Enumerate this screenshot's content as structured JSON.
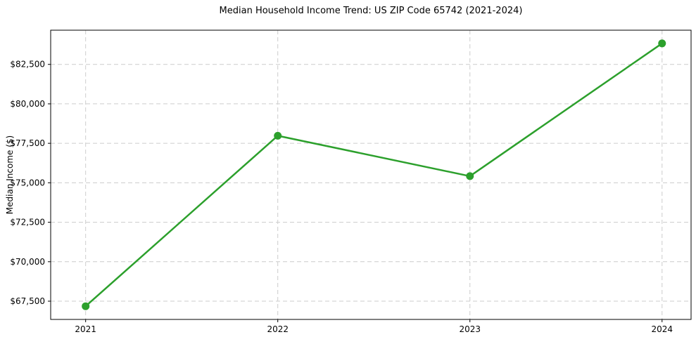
{
  "chart_data": {
    "type": "line",
    "title": "Median Household Income Trend: US ZIP Code 65742 (2021-2024)",
    "xlabel": "",
    "ylabel": "Median Income ($)",
    "x": [
      2021,
      2022,
      2023,
      2024
    ],
    "x_tick_labels": [
      "2021",
      "2022",
      "2023",
      "2024"
    ],
    "series": [
      {
        "name": "Median Household Income",
        "values": [
          67180,
          77980,
          75420,
          83830
        ]
      }
    ],
    "y_ticks": [
      {
        "value": 67500,
        "label": "$67,500"
      },
      {
        "value": 70000,
        "label": "$70,000"
      },
      {
        "value": 72500,
        "label": "$72,500"
      },
      {
        "value": 75000,
        "label": "$75,000"
      },
      {
        "value": 77500,
        "label": "$77,500"
      },
      {
        "value": 80000,
        "label": "$80,000"
      },
      {
        "value": 82500,
        "label": "$82,500"
      }
    ],
    "ylim": [
      66344,
      84666
    ],
    "grid": true,
    "grid_style": "dashed",
    "legend": "none",
    "marker": "circle",
    "colors": {
      "line": "#2ca02c",
      "marker": "#2ca02c",
      "grid": "#cccccc",
      "spine": "#000000",
      "text": "#000000",
      "background": "#ffffff"
    }
  }
}
